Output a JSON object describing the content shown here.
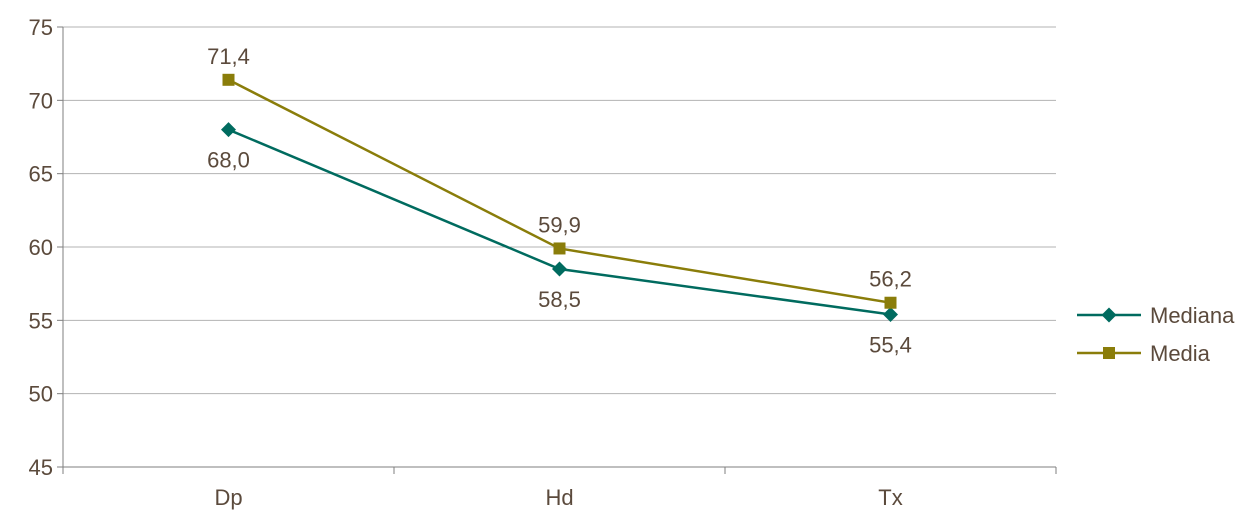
{
  "chart_data": {
    "type": "line",
    "categories": [
      "Dp",
      "Hd",
      "Tx"
    ],
    "ylim": [
      45,
      75
    ],
    "yticks": [
      45,
      50,
      55,
      60,
      65,
      70,
      75
    ],
    "grid": true,
    "legend_position": "right",
    "series": [
      {
        "name": "Mediana",
        "values": [
          68.0,
          58.5,
          55.4
        ],
        "labels": [
          "68,0",
          "58,5",
          "55,4"
        ],
        "color": "#006b5f",
        "marker": "diamond",
        "label_position": "below"
      },
      {
        "name": "Media",
        "values": [
          71.4,
          59.9,
          56.2
        ],
        "labels": [
          "71,4",
          "59,9",
          "56,2"
        ],
        "color": "#8a7d0a",
        "marker": "square",
        "label_position": "above"
      }
    ]
  }
}
